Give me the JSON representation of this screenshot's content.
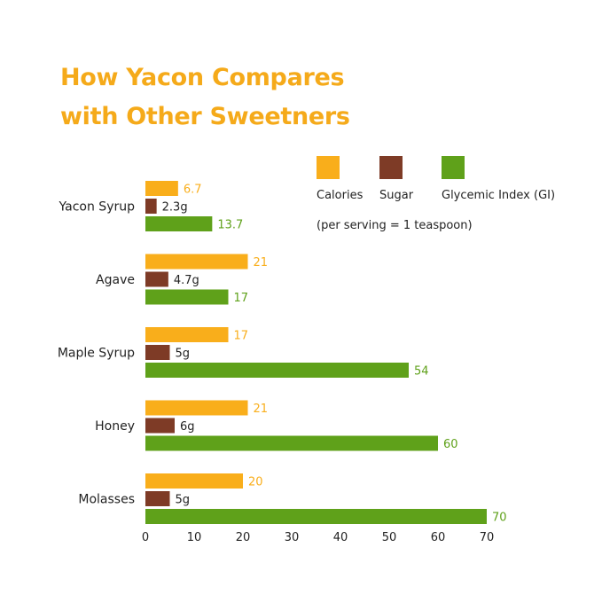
{
  "title_lines": [
    "How Yacon Compares",
    "with Other Sweetners"
  ],
  "chart_data": {
    "type": "bar",
    "orientation": "horizontal",
    "title": "How Yacon Compares with Other Sweetners",
    "categories": [
      "Yacon Syrup",
      "Agave",
      "Maple Syrup",
      "Honey",
      "Molasses"
    ],
    "series": [
      {
        "name": "Calories",
        "color": "#f9ae1b",
        "values": [
          6.7,
          21,
          17,
          21,
          20
        ],
        "labels": [
          "6.7",
          "21",
          "17",
          "21",
          "20"
        ]
      },
      {
        "name": "Sugar",
        "color": "#7e3b26",
        "values": [
          2.3,
          4.7,
          5,
          6,
          5
        ],
        "labels": [
          "2.3g",
          "4.7g",
          "5g",
          "6g",
          "5g"
        ]
      },
      {
        "name": "Glycemic Index (GI)",
        "color": "#5fa11a",
        "values": [
          13.7,
          17,
          54,
          60,
          70
        ],
        "labels": [
          "13.7",
          "17",
          "54",
          "60",
          "70"
        ]
      }
    ],
    "xlim": [
      0,
      70
    ],
    "xticks": [
      0,
      10,
      20,
      30,
      40,
      50,
      60,
      70
    ],
    "grid": false,
    "legend_position": "top-right",
    "legend_note": "(per serving = 1 teaspoon)",
    "value_label_colors": [
      "#f9ae1b",
      "#222222",
      "#5fa11a"
    ]
  }
}
